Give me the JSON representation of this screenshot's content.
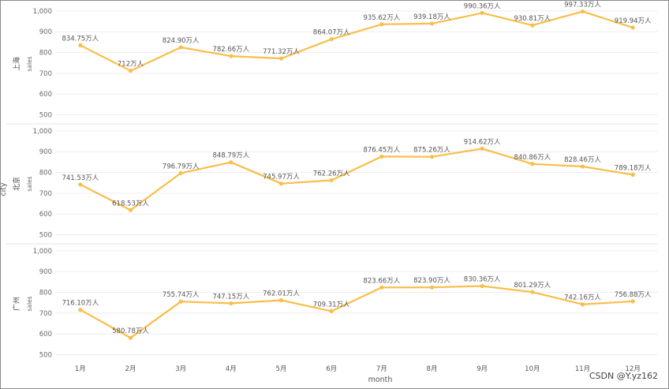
{
  "chart_data": {
    "type": "line",
    "x_title": "month",
    "y_title": "city",
    "facet_axis_label": "sales",
    "categories": [
      "1月",
      "2月",
      "3月",
      "4月",
      "5月",
      "6月",
      "7月",
      "8月",
      "9月",
      "10月",
      "11月",
      "12月"
    ],
    "y_ticks": [
      500,
      600,
      700,
      800,
      900,
      1000
    ],
    "y_tick_labels": [
      "500",
      "600",
      "700",
      "800",
      "900",
      "1,000"
    ],
    "ylim": [
      460,
      1030
    ],
    "grid": true,
    "line_color": "#f9be4a",
    "series": [
      {
        "name": "上海",
        "values": [
          834.75,
          712,
          824.9,
          782.66,
          771.32,
          864.07,
          935.62,
          939.18,
          990.36,
          930.81,
          997.33,
          919.94
        ],
        "labels": [
          "834.75万人",
          "712万人",
          "824.90万人",
          "782.66万人",
          "771.32万人",
          "864.07万人",
          "935.62万人",
          "939.18万人",
          "990.36万人",
          "930.81万人",
          "997.33万人",
          "919.94万人"
        ]
      },
      {
        "name": "北京",
        "values": [
          741.53,
          618.53,
          796.79,
          848.79,
          745.97,
          762.26,
          876.45,
          875.26,
          914.62,
          840.86,
          828.46,
          789.18
        ],
        "labels": [
          "741.53万人",
          "618.53万人",
          "796.79万人",
          "848.79万人",
          "745.97万人",
          "762.26万人",
          "876.45万人",
          "875.26万人",
          "914.62万人",
          "840.86万人",
          "828.46万人",
          "789.18万人"
        ]
      },
      {
        "name": "广州",
        "values": [
          716.1,
          580.78,
          755.74,
          747.15,
          762.01,
          709.31,
          823.66,
          823.9,
          830.36,
          801.29,
          742.16,
          756.88
        ],
        "labels": [
          "716.10万人",
          "580.78万人",
          "755.74万人",
          "747.15万人",
          "762.01万人",
          "709.31万人",
          "823.66万人",
          "823.90万人",
          "830.36万人",
          "801.29万人",
          "742.16万人",
          "756.88万人"
        ]
      }
    ]
  },
  "watermark": "CSDN @Y.yz162"
}
